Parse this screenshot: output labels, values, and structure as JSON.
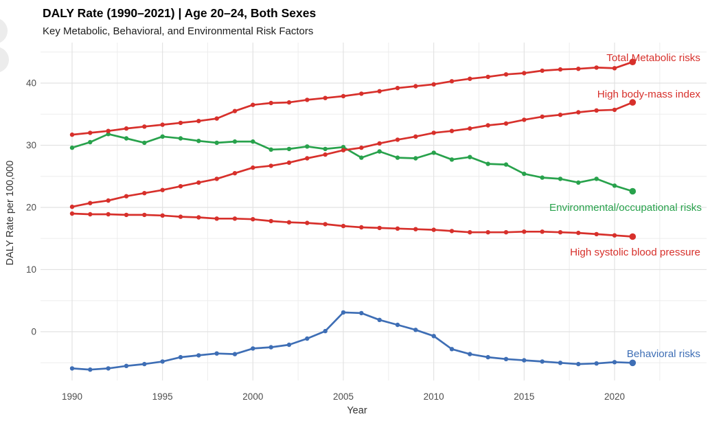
{
  "header": {
    "title": "DALY Rate (1990–2021) | Age 20–24, Both Sexes",
    "subtitle": "Key Metabolic, Behavioral, and Environmental Risk Factors"
  },
  "colors": {
    "red": "#d7302b",
    "green": "#28a24c",
    "blue": "#3e6eb5",
    "gridline_major": "#e2e2e2",
    "gridline_minor": "#ededed",
    "tick_text": "#4d4d4d",
    "watermark": "#ececec"
  },
  "chart_data": {
    "type": "line",
    "title": "DALY Rate (1990–2021) | Age 20–24, Both Sexes",
    "subtitle": "Key Metabolic, Behavioral, and Environmental Risk Factors",
    "xlabel": "Year",
    "ylabel": "DALY Rate per 100,000",
    "x": [
      1990,
      1991,
      1992,
      1993,
      1994,
      1995,
      1996,
      1997,
      1998,
      1999,
      2000,
      2001,
      2002,
      2003,
      2004,
      2005,
      2006,
      2007,
      2008,
      2009,
      2010,
      2011,
      2012,
      2013,
      2014,
      2015,
      2016,
      2017,
      2018,
      2019,
      2020,
      2021
    ],
    "x_ticks": [
      1990,
      1995,
      2000,
      2005,
      2010,
      2015,
      2020
    ],
    "y_ticks": [
      0,
      10,
      20,
      30,
      40
    ],
    "xlim": [
      1988.3,
      2025.1
    ],
    "ylim": [
      -7.9,
      46.5
    ],
    "grid": {
      "x_minor_step": 2.5,
      "x_range": [
        1990,
        2022.5
      ],
      "y_minor_step": 5,
      "y_range": [
        -5,
        45
      ],
      "visible": true
    },
    "legend_position": "right-edge-inline-labels",
    "series": [
      {
        "id": "environmental-occupational-risks",
        "name": "Environmental/occupational risks",
        "color": "#28a24c",
        "label": "Environmental/occupational risks",
        "values": [
          29.6,
          30.5,
          31.8,
          31.1,
          30.4,
          31.4,
          31.1,
          30.7,
          30.4,
          30.6,
          30.6,
          29.3,
          29.4,
          29.8,
          29.4,
          29.7,
          28.0,
          29.0,
          28.0,
          27.9,
          28.8,
          27.7,
          28.1,
          27.0,
          26.9,
          25.4,
          24.8,
          24.6,
          24.0,
          24.6,
          23.5,
          22.6
        ]
      },
      {
        "id": "total-metabolic-risks",
        "name": "Total Metabolic risks",
        "color": "#d7302b",
        "label": "Total Metabolic risks",
        "values": [
          31.7,
          32.0,
          32.3,
          32.7,
          33.0,
          33.3,
          33.6,
          33.9,
          34.3,
          35.5,
          36.5,
          36.8,
          36.9,
          37.3,
          37.6,
          37.9,
          38.3,
          38.7,
          39.2,
          39.5,
          39.8,
          40.3,
          40.7,
          41.0,
          41.4,
          41.6,
          42.0,
          42.2,
          42.3,
          42.5,
          42.4,
          43.4
        ]
      },
      {
        "id": "high-body-mass-index",
        "name": "High body-mass index",
        "color": "#d7302b",
        "label": "High body-mass index",
        "values": [
          20.1,
          20.7,
          21.1,
          21.8,
          22.3,
          22.8,
          23.4,
          24.0,
          24.6,
          25.5,
          26.4,
          26.7,
          27.2,
          27.9,
          28.5,
          29.2,
          29.6,
          30.3,
          30.9,
          31.4,
          32.0,
          32.3,
          32.7,
          33.2,
          33.5,
          34.1,
          34.6,
          34.9,
          35.3,
          35.6,
          35.7,
          36.9
        ]
      },
      {
        "id": "high-systolic-blood-pressure",
        "name": "High systolic blood pressure",
        "color": "#d7302b",
        "label": "High systolic blood pressure",
        "values": [
          19.0,
          18.9,
          18.9,
          18.8,
          18.8,
          18.7,
          18.5,
          18.4,
          18.2,
          18.2,
          18.1,
          17.8,
          17.6,
          17.5,
          17.3,
          17.0,
          16.8,
          16.7,
          16.6,
          16.5,
          16.4,
          16.2,
          16.0,
          16.0,
          16.0,
          16.1,
          16.1,
          16.0,
          15.9,
          15.7,
          15.5,
          15.3
        ]
      },
      {
        "id": "behavioral-risks",
        "name": "Behavioral risks",
        "color": "#3e6eb5",
        "label": "Behavioral risks",
        "values": [
          -5.9,
          -6.1,
          -5.9,
          -5.5,
          -5.2,
          -4.8,
          -4.1,
          -3.8,
          -3.5,
          -3.6,
          -2.7,
          -2.5,
          -2.1,
          -1.1,
          0.1,
          3.1,
          3.0,
          1.9,
          1.1,
          0.3,
          -0.7,
          -2.8,
          -3.6,
          -4.1,
          -4.4,
          -4.6,
          -4.8,
          -5.0,
          -5.2,
          -5.1,
          -4.9,
          -5.0
        ]
      }
    ]
  }
}
